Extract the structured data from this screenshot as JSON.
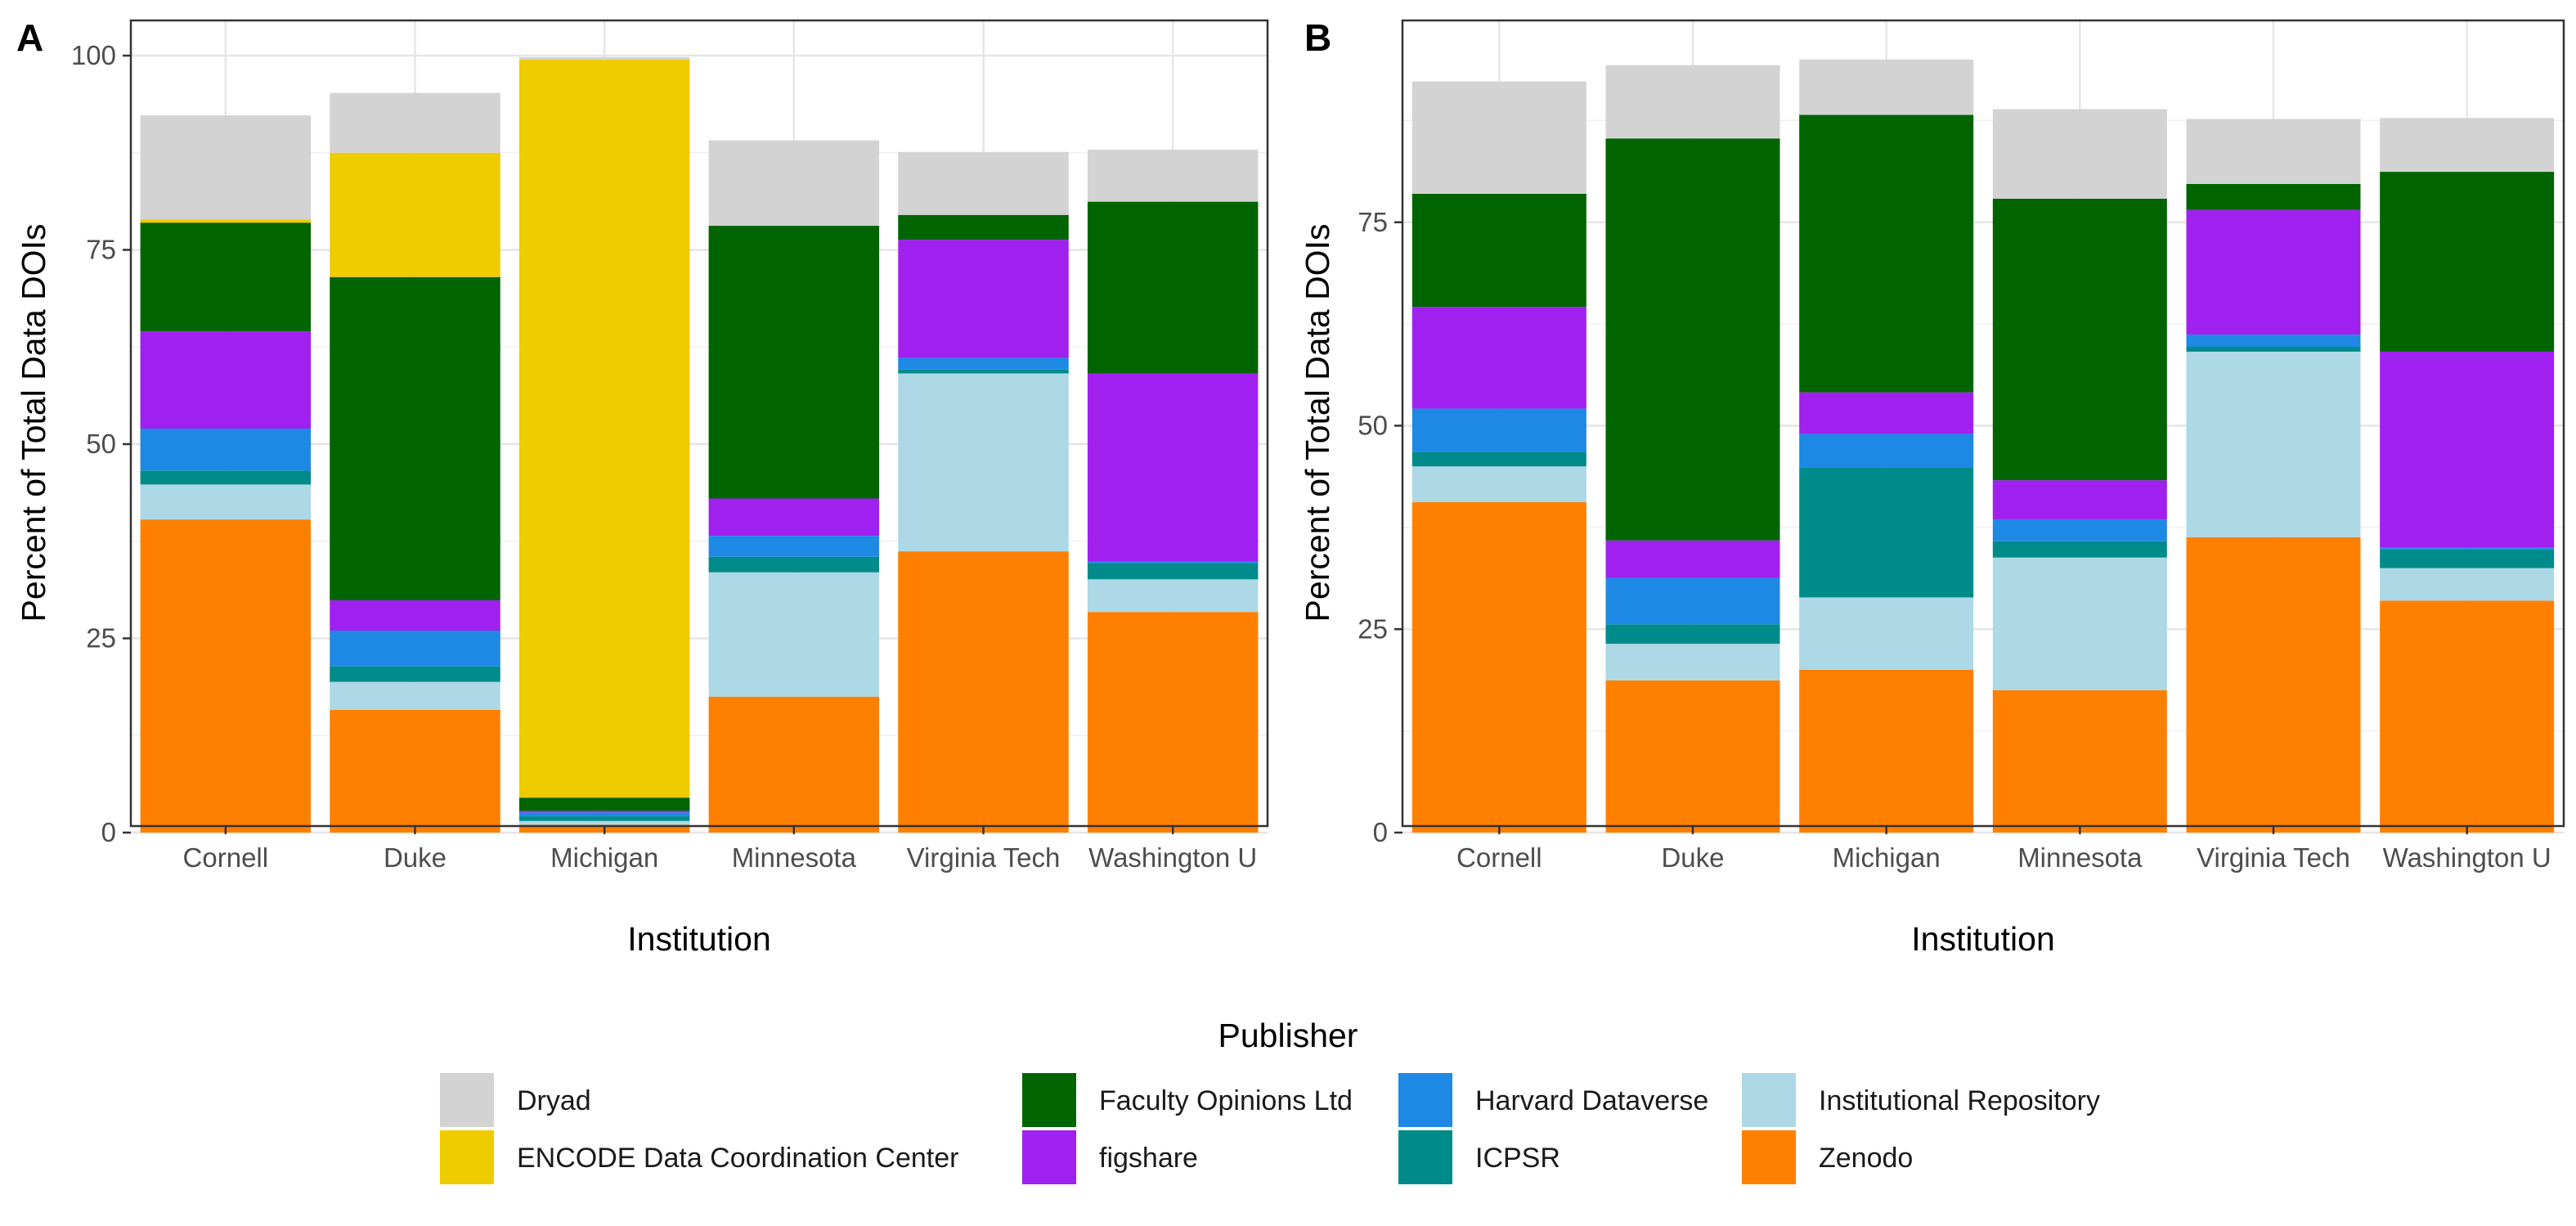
{
  "legend": {
    "title": "Publisher",
    "entries": [
      {
        "key": "dryad",
        "label": "Dryad",
        "color": "#D3D3D3"
      },
      {
        "key": "encode",
        "label": "ENCODE Data Coordination Center",
        "color": "#EECC00"
      },
      {
        "key": "faculty",
        "label": "Faculty Opinions Ltd",
        "color": "#006400"
      },
      {
        "key": "figshare",
        "label": "figshare",
        "color": "#A020F0"
      },
      {
        "key": "harvard",
        "label": "Harvard Dataverse",
        "color": "#1E88E5"
      },
      {
        "key": "icpsr",
        "label": "ICPSR",
        "color": "#008B8B"
      },
      {
        "key": "ir",
        "label": "Institutional Repository",
        "color": "#ADD8E6"
      },
      {
        "key": "zenodo",
        "label": "Zenodo",
        "color": "#FF8000"
      }
    ]
  },
  "chart_data": [
    {
      "panel": "A",
      "type": "bar",
      "stacked": true,
      "xlabel": "Institution",
      "ylabel": "Percent of Total Data DOIs",
      "ylim": [
        0,
        105
      ],
      "yticks": [
        0,
        25,
        50,
        75,
        100
      ],
      "grid": true,
      "categories": [
        "Cornell",
        "Duke",
        "Michigan",
        "Minnesota",
        "Virginia Tech",
        "Washington U"
      ],
      "series": [
        {
          "name": "Zenodo",
          "values": [
            40.3,
            15.8,
            1.0,
            17.5,
            36.2,
            28.4
          ]
        },
        {
          "name": "Institutional Repository",
          "values": [
            4.5,
            3.6,
            0.5,
            16.0,
            22.9,
            4.2
          ]
        },
        {
          "name": "ICPSR",
          "values": [
            1.8,
            2.0,
            0.6,
            2.0,
            0.5,
            2.1
          ]
        },
        {
          "name": "Harvard Dataverse",
          "values": [
            5.4,
            4.6,
            0.5,
            2.7,
            1.5,
            0.2
          ]
        },
        {
          "name": "figshare",
          "values": [
            12.5,
            3.9,
            0.2,
            4.8,
            15.2,
            24.2
          ]
        },
        {
          "name": "Faculty Opinions Ltd",
          "values": [
            14.0,
            41.6,
            1.7,
            35.1,
            3.2,
            22.1
          ]
        },
        {
          "name": "ENCODE Data Coordination Center",
          "values": [
            0.4,
            16.0,
            95.0,
            0.0,
            0.0,
            0.0
          ]
        },
        {
          "name": "Dryad",
          "values": [
            13.4,
            7.7,
            0.3,
            11.0,
            8.1,
            6.7
          ]
        }
      ]
    },
    {
      "panel": "B",
      "type": "bar",
      "stacked": true,
      "xlabel": "Institution",
      "ylabel": "Percent of Total Data DOIs",
      "ylim": [
        0,
        100
      ],
      "yticks": [
        0,
        25,
        50,
        75
      ],
      "grid": true,
      "categories": [
        "Cornell",
        "Duke",
        "Michigan",
        "Minnesota",
        "Virginia Tech",
        "Washington U"
      ],
      "series": [
        {
          "name": "Zenodo",
          "values": [
            40.6,
            18.7,
            20.0,
            17.5,
            36.3,
            28.5
          ]
        },
        {
          "name": "Institutional Repository",
          "values": [
            4.4,
            4.5,
            8.9,
            16.3,
            22.8,
            4.0
          ]
        },
        {
          "name": "ICPSR",
          "values": [
            1.8,
            2.4,
            16.0,
            2.0,
            0.6,
            2.3
          ]
        },
        {
          "name": "Harvard Dataverse",
          "values": [
            5.3,
            5.7,
            4.1,
            2.7,
            1.5,
            0.2
          ]
        },
        {
          "name": "figshare",
          "values": [
            12.5,
            4.6,
            5.1,
            4.8,
            15.3,
            24.1
          ]
        },
        {
          "name": "Faculty Opinions Ltd",
          "values": [
            13.9,
            49.4,
            34.1,
            34.6,
            3.2,
            22.1
          ]
        },
        {
          "name": "ENCODE Data Coordination Center",
          "values": [
            0,
            0,
            0,
            0,
            0,
            0
          ]
        },
        {
          "name": "Dryad",
          "values": [
            13.8,
            9.0,
            6.8,
            11.0,
            8.0,
            6.6
          ]
        }
      ]
    }
  ],
  "panels": {
    "a": {
      "tag": "A"
    },
    "b": {
      "tag": "B"
    }
  }
}
